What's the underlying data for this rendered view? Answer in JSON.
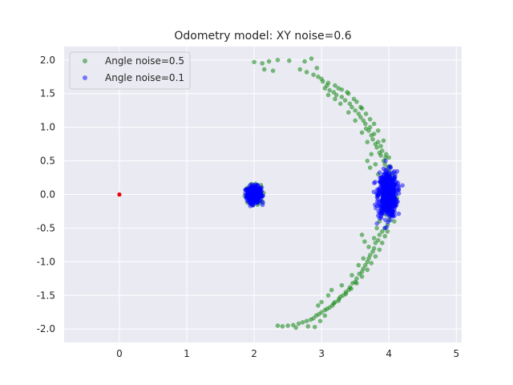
{
  "chart_data": {
    "type": "scatter",
    "title": "Odometry model: XY noise=0.6",
    "xlabel": "",
    "ylabel": "",
    "xlim": [
      -0.82,
      5.08
    ],
    "ylim": [
      -2.2,
      2.2
    ],
    "xticks": [
      0,
      1,
      2,
      3,
      4,
      5
    ],
    "yticks": [
      -2.0,
      -1.5,
      -1.0,
      -0.5,
      0.0,
      0.5,
      1.0,
      1.5,
      2.0
    ],
    "grid": true,
    "legend_position": "upper-left",
    "origin_point": {
      "x": 0,
      "y": 0,
      "color": "#e8000b"
    },
    "series": [
      {
        "name": "Angle noise=0.5",
        "color": "#008000",
        "alpha": 0.5,
        "points": [
          [
            2.0,
            1.97
          ],
          [
            2.12,
            1.95
          ],
          [
            2.22,
            1.98
          ],
          [
            2.35,
            2.0
          ],
          [
            2.52,
            1.99
          ],
          [
            2.75,
            1.98
          ],
          [
            2.85,
            2.02
          ],
          [
            2.15,
            1.86
          ],
          [
            2.28,
            1.84
          ],
          [
            2.68,
            1.86
          ],
          [
            2.78,
            1.82
          ],
          [
            2.88,
            1.78
          ],
          [
            2.95,
            1.75
          ],
          [
            3.0,
            1.72
          ],
          [
            2.93,
            1.88
          ],
          [
            3.02,
            1.68
          ],
          [
            3.08,
            1.62
          ],
          [
            3.12,
            1.55
          ],
          [
            3.05,
            1.58
          ],
          [
            3.18,
            1.52
          ],
          [
            3.22,
            1.48
          ],
          [
            3.25,
            1.58
          ],
          [
            3.3,
            1.45
          ],
          [
            3.35,
            1.4
          ],
          [
            3.38,
            1.52
          ],
          [
            3.42,
            1.35
          ],
          [
            3.45,
            1.3
          ],
          [
            3.5,
            1.25
          ],
          [
            3.52,
            1.38
          ],
          [
            3.55,
            1.2
          ],
          [
            3.58,
            1.15
          ],
          [
            3.6,
            1.28
          ],
          [
            3.62,
            1.1
          ],
          [
            3.65,
            1.05
          ],
          [
            3.66,
            0.98
          ],
          [
            3.7,
            0.95
          ],
          [
            3.72,
            1.0
          ],
          [
            3.74,
            0.88
          ],
          [
            3.76,
            0.82
          ],
          [
            3.78,
            0.9
          ],
          [
            3.8,
            0.75
          ],
          [
            3.82,
            0.7
          ],
          [
            3.84,
            0.78
          ],
          [
            3.86,
            0.62
          ],
          [
            3.88,
            0.58
          ],
          [
            3.9,
            0.65
          ],
          [
            3.92,
            0.5
          ],
          [
            3.94,
            0.45
          ],
          [
            3.95,
            0.55
          ],
          [
            3.98,
            0.4
          ],
          [
            4.0,
            0.35
          ],
          [
            4.02,
            0.42
          ],
          [
            4.04,
            0.3
          ],
          [
            4.06,
            0.25
          ],
          [
            3.96,
            0.3
          ],
          [
            3.9,
            0.2
          ],
          [
            3.92,
            0.1
          ],
          [
            3.88,
            0.0
          ],
          [
            3.9,
            -0.1
          ],
          [
            3.92,
            -0.2
          ],
          [
            3.96,
            -0.3
          ],
          [
            4.0,
            -0.38
          ],
          [
            3.98,
            -0.45
          ],
          [
            3.94,
            -0.5
          ],
          [
            3.9,
            -0.55
          ],
          [
            3.86,
            -0.6
          ],
          [
            3.84,
            -0.68
          ],
          [
            3.8,
            -0.72
          ],
          [
            3.78,
            -0.8
          ],
          [
            3.76,
            -0.85
          ],
          [
            3.72,
            -0.9
          ],
          [
            3.7,
            -0.95
          ],
          [
            3.68,
            -1.0
          ],
          [
            3.65,
            -1.05
          ],
          [
            3.62,
            -1.1
          ],
          [
            3.6,
            -1.15
          ],
          [
            3.56,
            -1.18
          ],
          [
            3.52,
            -1.25
          ],
          [
            3.5,
            -1.3
          ],
          [
            3.46,
            -1.32
          ],
          [
            3.42,
            -1.38
          ],
          [
            3.4,
            -1.42
          ],
          [
            3.36,
            -1.45
          ],
          [
            3.32,
            -1.5
          ],
          [
            3.28,
            -1.52
          ],
          [
            3.25,
            -1.58
          ],
          [
            3.2,
            -1.6
          ],
          [
            3.16,
            -1.65
          ],
          [
            3.12,
            -1.68
          ],
          [
            3.08,
            -1.7
          ],
          [
            3.05,
            -1.72
          ],
          [
            3.0,
            -1.75
          ],
          [
            2.96,
            -1.78
          ],
          [
            2.92,
            -1.8
          ],
          [
            2.88,
            -1.84
          ],
          [
            2.84,
            -1.86
          ],
          [
            2.78,
            -1.88
          ],
          [
            2.72,
            -1.9
          ],
          [
            2.66,
            -1.92
          ],
          [
            2.58,
            -1.94
          ],
          [
            2.5,
            -1.95
          ],
          [
            2.42,
            -1.96
          ],
          [
            2.35,
            -1.95
          ],
          [
            2.62,
            -1.98
          ],
          [
            2.8,
            -1.96
          ],
          [
            2.9,
            -1.97
          ],
          [
            3.1,
            -1.5
          ],
          [
            3.15,
            -1.42
          ],
          [
            3.3,
            -1.35
          ],
          [
            3.45,
            -1.2
          ],
          [
            3.55,
            -1.05
          ],
          [
            3.62,
            -0.95
          ],
          [
            3.7,
            -0.78
          ],
          [
            3.78,
            -0.65
          ],
          [
            3.82,
            -0.5
          ],
          [
            3.86,
            -0.4
          ],
          [
            3.84,
            0.3
          ],
          [
            3.8,
            0.45
          ],
          [
            3.74,
            0.6
          ],
          [
            3.68,
            0.78
          ],
          [
            3.6,
            0.92
          ],
          [
            3.5,
            1.1
          ],
          [
            3.4,
            1.22
          ],
          [
            3.28,
            1.35
          ],
          [
            3.2,
            1.42
          ],
          [
            3.1,
            1.48
          ],
          [
            4.08,
            0.15
          ],
          [
            4.1,
            0.05
          ],
          [
            4.12,
            -0.05
          ],
          [
            4.1,
            -0.15
          ],
          [
            4.06,
            -0.25
          ],
          [
            4.02,
            -0.32
          ],
          [
            4.08,
            -0.4
          ],
          [
            3.96,
            0.6
          ],
          [
            4.0,
            0.55
          ],
          [
            3.88,
            0.72
          ],
          [
            3.92,
            0.8
          ],
          [
            3.84,
            0.95
          ],
          [
            3.78,
            1.05
          ],
          [
            3.72,
            1.12
          ],
          [
            3.66,
            1.2
          ],
          [
            3.58,
            1.3
          ],
          [
            3.48,
            1.42
          ],
          [
            3.4,
            1.5
          ],
          [
            3.3,
            1.56
          ],
          [
            3.2,
            1.62
          ],
          [
            3.1,
            1.66
          ],
          [
            3.94,
            -0.62
          ],
          [
            3.98,
            -0.55
          ],
          [
            3.9,
            -0.72
          ],
          [
            3.86,
            -0.82
          ],
          [
            3.8,
            -0.92
          ],
          [
            3.74,
            -1.02
          ],
          [
            3.68,
            -1.12
          ],
          [
            3.6,
            -1.22
          ],
          [
            3.52,
            -1.32
          ],
          [
            3.44,
            -1.4
          ],
          [
            3.36,
            -1.48
          ],
          [
            3.26,
            -1.55
          ],
          [
            3.18,
            -1.62
          ],
          [
            3.0,
            -1.6
          ],
          [
            2.95,
            -1.65
          ],
          [
            3.05,
            -1.8
          ],
          [
            2.98,
            -1.88
          ],
          [
            3.6,
            -0.6
          ],
          [
            3.64,
            -0.7
          ],
          [
            3.68,
            0.5
          ],
          [
            3.72,
            0.4
          ],
          [
            1.88,
            0.08
          ],
          [
            1.92,
            -0.05
          ],
          [
            2.1,
            0.1
          ],
          [
            2.12,
            -0.1
          ],
          [
            1.9,
            0.1
          ],
          [
            2.08,
            -0.12
          ],
          [
            1.86,
            -0.02
          ],
          [
            2.14,
            0.02
          ],
          [
            1.95,
            0.15
          ],
          [
            2.05,
            -0.15
          ],
          [
            1.9,
            -0.12
          ],
          [
            2.1,
            0.14
          ],
          [
            2.02,
            0.16
          ],
          [
            1.98,
            -0.16
          ]
        ]
      },
      {
        "name": "Angle noise=0.1",
        "color": "#0000ff",
        "alpha": 0.5,
        "clusters": [
          {
            "cx": 2.0,
            "cy": 0.0,
            "sx": 0.055,
            "sy": 0.06,
            "rx": 0.13,
            "ry": 0.17,
            "n": 320
          },
          {
            "cx": 3.98,
            "cy": 0.0,
            "sx": 0.07,
            "sy": 0.17,
            "rx": 0.3,
            "ry": 0.5,
            "n": 520
          }
        ]
      }
    ]
  }
}
